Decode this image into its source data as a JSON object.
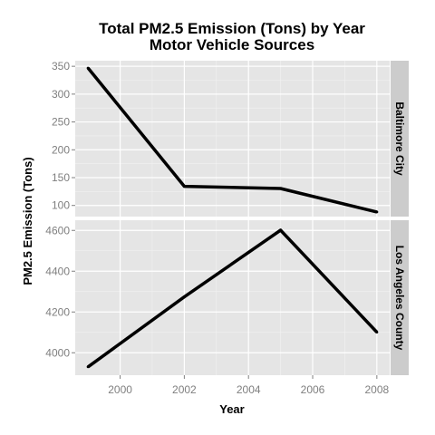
{
  "chart_data": {
    "type": "line",
    "title_line1": "Total PM2.5 Emission (Tons) by Year",
    "title_line2": "Motor Vehicle Sources",
    "xlabel": "Year",
    "ylabel": "PM2.5 Emission (Tons)",
    "xlim": [
      1998.6,
      2008.4
    ],
    "x_ticks": [
      2000,
      2002,
      2004,
      2006,
      2008
    ],
    "grid": true,
    "line_color": "#000000",
    "panel_bg": "#e5e5e5",
    "strip_bg": "#cccccc",
    "panels": [
      {
        "strip": "Baltimore City",
        "ylim": [
          80,
          360
        ],
        "y_ticks": [
          100,
          150,
          200,
          250,
          300,
          350
        ],
        "x": [
          1999,
          2002,
          2005,
          2008
        ],
        "y": [
          346.8,
          134.3,
          130.4,
          88.3
        ]
      },
      {
        "strip": "Los Angeles County",
        "ylim": [
          3890,
          4650
        ],
        "y_ticks": [
          4000,
          4200,
          4400,
          4600
        ],
        "x": [
          1999,
          2002,
          2005,
          2008
        ],
        "y": [
          3931,
          4274,
          4601,
          4101
        ]
      }
    ]
  }
}
